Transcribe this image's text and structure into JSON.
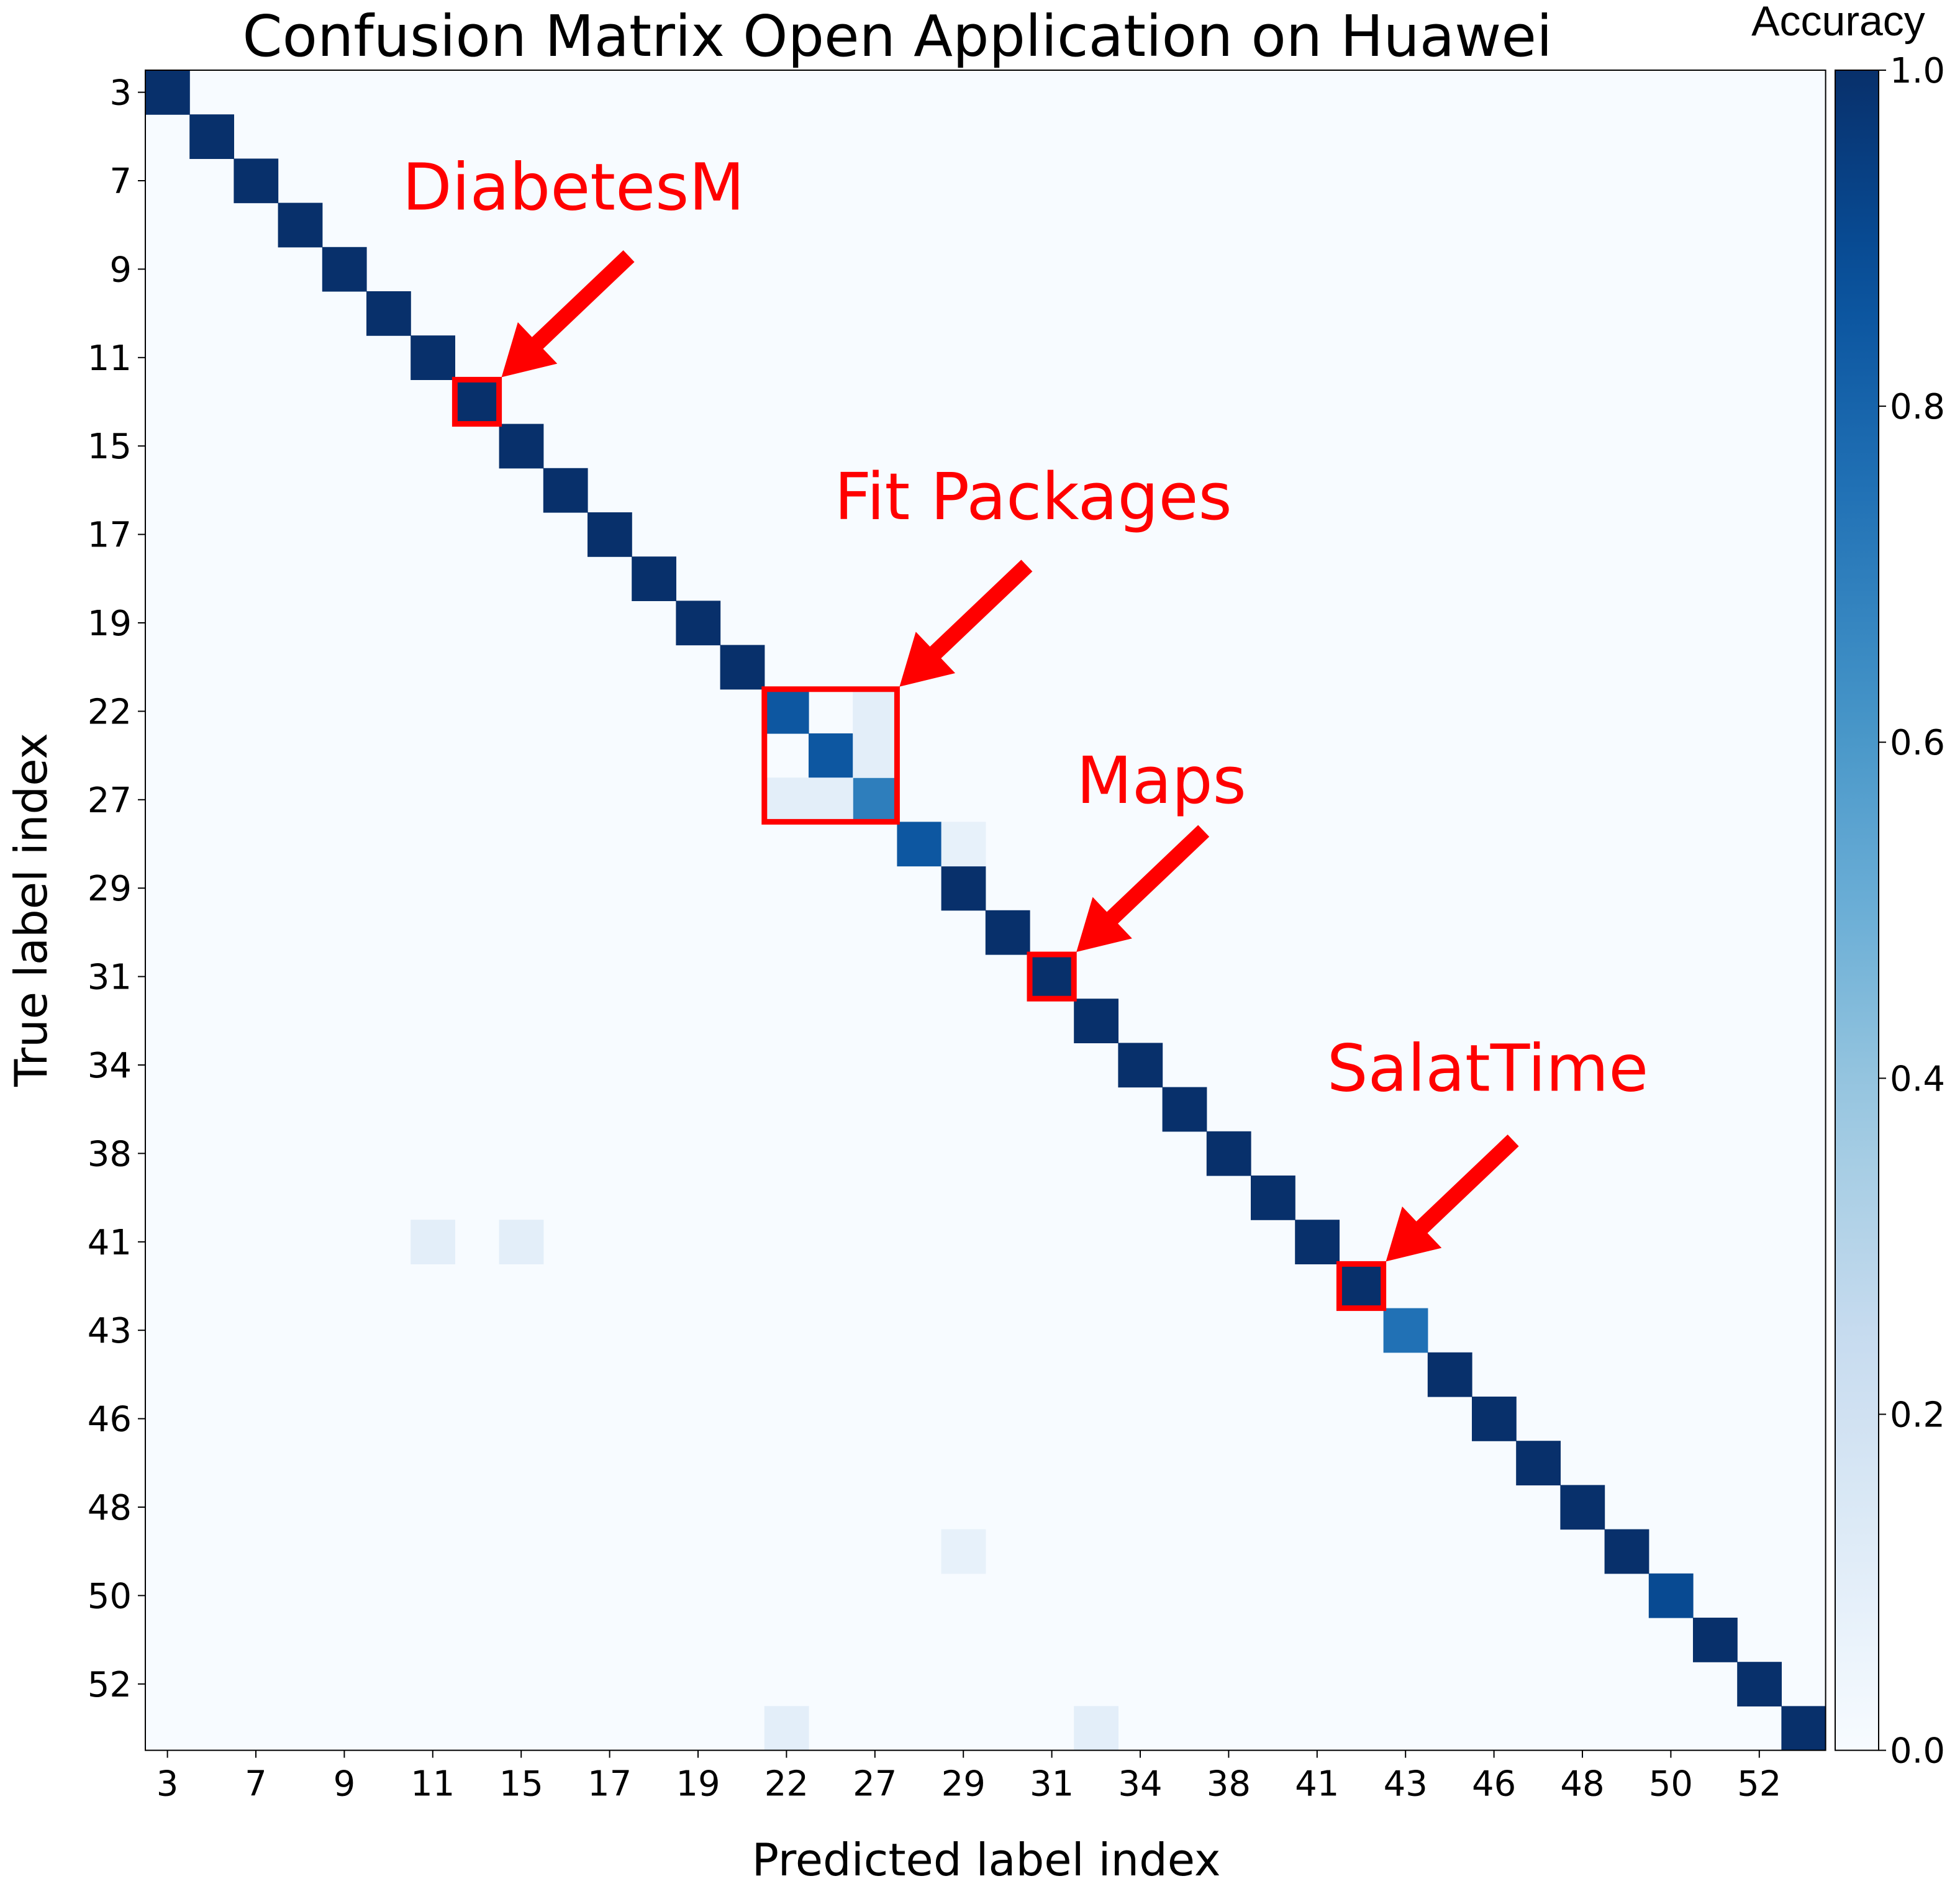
{
  "chart_data": {
    "type": "heatmap",
    "title": "Confusion Matrix Open Application on Huawei",
    "xlabel": "Predicted label index",
    "ylabel": "True label index",
    "colorbar": {
      "label": "Accuracy",
      "range": [
        0.0,
        1.0
      ],
      "ticks": [
        "0.0",
        "0.2",
        "0.4",
        "0.6",
        "0.8",
        "1.0"
      ],
      "colormap": "Blues"
    },
    "n": 38,
    "tick_labels": [
      "3",
      "7",
      "9",
      "11",
      "15",
      "17",
      "19",
      "22",
      "27",
      "29",
      "31",
      "34",
      "38",
      "41",
      "43",
      "46",
      "48",
      "50",
      "52"
    ],
    "tick_positions": [
      0,
      2,
      4,
      6,
      8,
      10,
      12,
      14,
      16,
      18,
      20,
      22,
      24,
      26,
      28,
      30,
      32,
      34,
      36
    ],
    "diagonal": [
      1.0,
      1.0,
      1.0,
      1.0,
      1.0,
      1.0,
      1.0,
      1.0,
      1.0,
      1.0,
      1.0,
      1.0,
      1.0,
      1.0,
      0.85,
      0.85,
      0.7,
      0.85,
      1.0,
      1.0,
      1.0,
      1.0,
      1.0,
      1.0,
      1.0,
      1.0,
      1.0,
      1.0,
      0.75,
      1.0,
      1.0,
      1.0,
      1.0,
      1.0,
      0.9,
      1.0,
      1.0,
      1.0
    ],
    "off_diagonal": [
      {
        "row": 14,
        "col": 16,
        "value": 0.1
      },
      {
        "row": 15,
        "col": 16,
        "value": 0.1
      },
      {
        "row": 16,
        "col": 14,
        "value": 0.1
      },
      {
        "row": 16,
        "col": 15,
        "value": 0.1
      },
      {
        "row": 17,
        "col": 18,
        "value": 0.08
      },
      {
        "row": 26,
        "col": 6,
        "value": 0.1
      },
      {
        "row": 26,
        "col": 8,
        "value": 0.1
      },
      {
        "row": 33,
        "col": 18,
        "value": 0.08
      },
      {
        "row": 37,
        "col": 14,
        "value": 0.1
      },
      {
        "row": 37,
        "col": 21,
        "value": 0.1
      }
    ],
    "annotations": [
      {
        "text": "DiabetesM",
        "cells": [
          7,
          7
        ]
      },
      {
        "text": "Fit Packages",
        "cells": [
          14,
          16
        ]
      },
      {
        "text": "Maps",
        "cells": [
          20,
          20
        ]
      },
      {
        "text": "SalatTime",
        "cells": [
          27,
          27
        ]
      }
    ],
    "annotation_color": "#ff0000"
  }
}
